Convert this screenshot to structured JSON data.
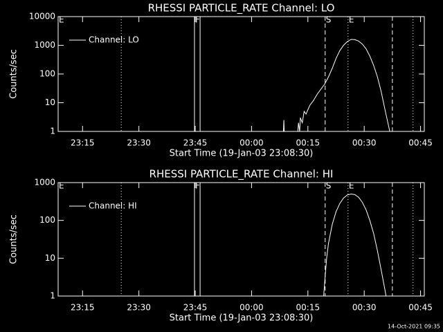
{
  "chart_data": [
    {
      "type": "line",
      "title": "RHESSI PARTICLE_RATE Channel: LO",
      "xlabel": "Start Time (19-Jan-03 23:08:30)",
      "ylabel": "Counts/sec",
      "x": [
        60.0,
        60.1,
        60.2,
        62.0,
        63.8,
        64.0,
        64.3,
        64.5,
        65.0,
        65.5,
        66.0,
        67.0,
        68.0,
        69.0,
        70.0,
        71.0,
        72.0,
        73.0,
        74.0,
        75.0,
        76.0,
        77.0,
        78.0,
        79.0,
        80.0,
        81.0,
        82.0,
        83.0,
        84.0,
        85.0,
        86.0,
        87.0,
        88.0,
        88.3
      ],
      "series": [
        {
          "name": "Channel: LO",
          "color": "#ffffff",
          "values": [
            1,
            2.5,
            1,
            null,
            1,
            2,
            1,
            3,
            2,
            5,
            4,
            8,
            12,
            20,
            30,
            45,
            80,
            160,
            350,
            650,
            1000,
            1350,
            1600,
            1580,
            1400,
            1100,
            750,
            420,
            200,
            80,
            25,
            6,
            1.5,
            1
          ]
        }
      ],
      "xlim": [
        0,
        97.5
      ],
      "ylim": [
        1,
        10000
      ],
      "log_y": true,
      "legend": "upper left",
      "xticks": [
        {
          "value": 6.5,
          "label": "23:15"
        },
        {
          "value": 21.5,
          "label": "23:30"
        },
        {
          "value": 36.5,
          "label": "23:45"
        },
        {
          "value": 51.5,
          "label": "00:00"
        },
        {
          "value": 66.5,
          "label": "00:15"
        },
        {
          "value": 81.5,
          "label": "00:30"
        },
        {
          "value": 96.5,
          "label": "00:45"
        }
      ],
      "yticks": [
        1,
        10,
        100,
        1000,
        10000
      ],
      "markers": [
        {
          "x": 0,
          "style": "solid",
          "label": "E"
        },
        {
          "x": 16.8,
          "style": "dotted"
        },
        {
          "x": 36.3,
          "style": "solid",
          "label": "F"
        },
        {
          "x": 37.8,
          "style": "solid"
        },
        {
          "x": 71.1,
          "style": "dashed",
          "label": "S"
        },
        {
          "x": 77.2,
          "style": "dotted",
          "label": "E"
        },
        {
          "x": 89.0,
          "style": "dashed"
        },
        {
          "x": 94.5,
          "style": "dotted"
        }
      ]
    },
    {
      "type": "line",
      "title": "RHESSI PARTICLE_RATE Channel: HI",
      "xlabel": "Start Time (19-Jan-03 23:08:30)",
      "ylabel": "Counts/sec",
      "x": [
        70.7,
        71.0,
        71.5,
        72.0,
        73.0,
        74.0,
        75.0,
        76.0,
        77.0,
        78.0,
        79.0,
        80.0,
        81.0,
        82.0,
        83.0,
        84.0,
        85.0,
        86.0,
        87.0,
        87.3
      ],
      "series": [
        {
          "name": "Channel: HI",
          "color": "#ffffff",
          "values": [
            1,
            2.5,
            10,
            25,
            80,
            170,
            280,
            390,
            470,
            500,
            480,
            410,
            300,
            190,
            100,
            45,
            16,
            5,
            1.5,
            1
          ]
        }
      ],
      "xlim": [
        0,
        97.5
      ],
      "ylim": [
        1,
        1000
      ],
      "log_y": true,
      "legend": "upper left",
      "xticks": [
        {
          "value": 6.5,
          "label": "23:15"
        },
        {
          "value": 21.5,
          "label": "23:30"
        },
        {
          "value": 36.5,
          "label": "23:45"
        },
        {
          "value": 51.5,
          "label": "00:00"
        },
        {
          "value": 66.5,
          "label": "00:15"
        },
        {
          "value": 81.5,
          "label": "00:30"
        },
        {
          "value": 96.5,
          "label": "00:45"
        }
      ],
      "yticks": [
        1,
        10,
        100,
        1000
      ],
      "markers": [
        {
          "x": 0,
          "style": "solid",
          "label": "E"
        },
        {
          "x": 16.8,
          "style": "dotted"
        },
        {
          "x": 36.3,
          "style": "solid",
          "label": "F"
        },
        {
          "x": 37.8,
          "style": "solid"
        },
        {
          "x": 71.1,
          "style": "dashed",
          "label": "S"
        },
        {
          "x": 77.2,
          "style": "dotted",
          "label": "E"
        },
        {
          "x": 89.0,
          "style": "dashed"
        },
        {
          "x": 94.5,
          "style": "dotted"
        }
      ]
    }
  ],
  "footer": "14-Oct-2021 09:35"
}
